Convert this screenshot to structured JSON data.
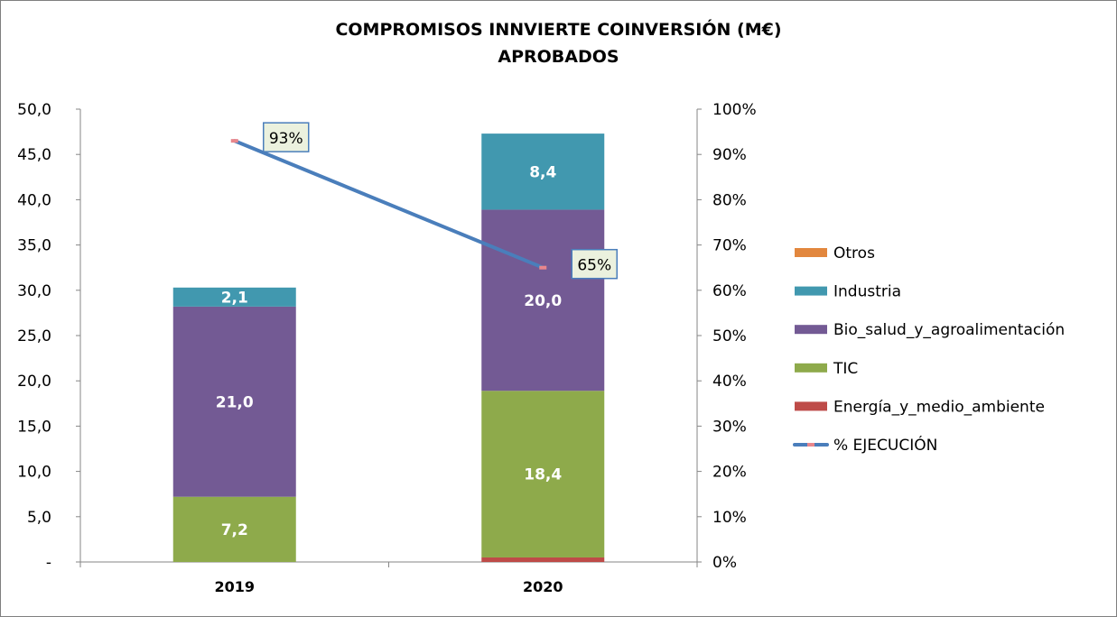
{
  "chart_data": {
    "type": "bar",
    "stacked": true,
    "title": "COMPROMISOS INNVIERTE COINVERSIÓN (M€)",
    "subtitle": "APROBADOS",
    "categories": [
      "2019",
      "2020"
    ],
    "y_left": {
      "min": 0,
      "max": 50,
      "step": 5,
      "tick_labels": [
        "-",
        "5,0",
        "10,0",
        "15,0",
        "20,0",
        "25,0",
        "30,0",
        "35,0",
        "40,0",
        "45,0",
        "50,0"
      ]
    },
    "y_right": {
      "min": 0,
      "max": 100,
      "step": 10,
      "tick_labels": [
        "0%",
        "10%",
        "20%",
        "30%",
        "40%",
        "50%",
        "60%",
        "70%",
        "80%",
        "90%",
        "100%"
      ]
    },
    "series": [
      {
        "name": "Energía_y_medio_ambiente",
        "color": "#be4b48",
        "values": [
          0.0,
          0.5
        ],
        "labels": [
          "",
          ""
        ]
      },
      {
        "name": "TIC",
        "color": "#8eaa4b",
        "values": [
          7.2,
          18.4
        ],
        "labels": [
          "7,2",
          "18,4"
        ]
      },
      {
        "name": "Bio_salud_y_agroalimentación",
        "color": "#735a94",
        "values": [
          21.0,
          20.0
        ],
        "labels": [
          "21,0",
          "20,0"
        ]
      },
      {
        "name": "Industria",
        "color": "#4198af",
        "values": [
          2.1,
          8.4
        ],
        "labels": [
          "2,1",
          "8,4"
        ]
      },
      {
        "name": "Otros",
        "color": "#e2873e",
        "values": [
          0.0,
          0.0
        ],
        "labels": [
          "",
          ""
        ]
      }
    ],
    "line": {
      "name": "% EJECUCIÓN",
      "color": "#4a7ebb",
      "marker_color": "#e8868c",
      "axis": "right",
      "values": [
        93,
        65
      ],
      "labels": [
        "93%",
        "65%"
      ]
    },
    "legend_order": [
      "Otros",
      "Industria",
      "Bio_salud_y_agroalimentación",
      "TIC",
      "Energía_y_medio_ambiente",
      "% EJECUCIÓN"
    ],
    "legend_position": "right",
    "grid": false
  }
}
